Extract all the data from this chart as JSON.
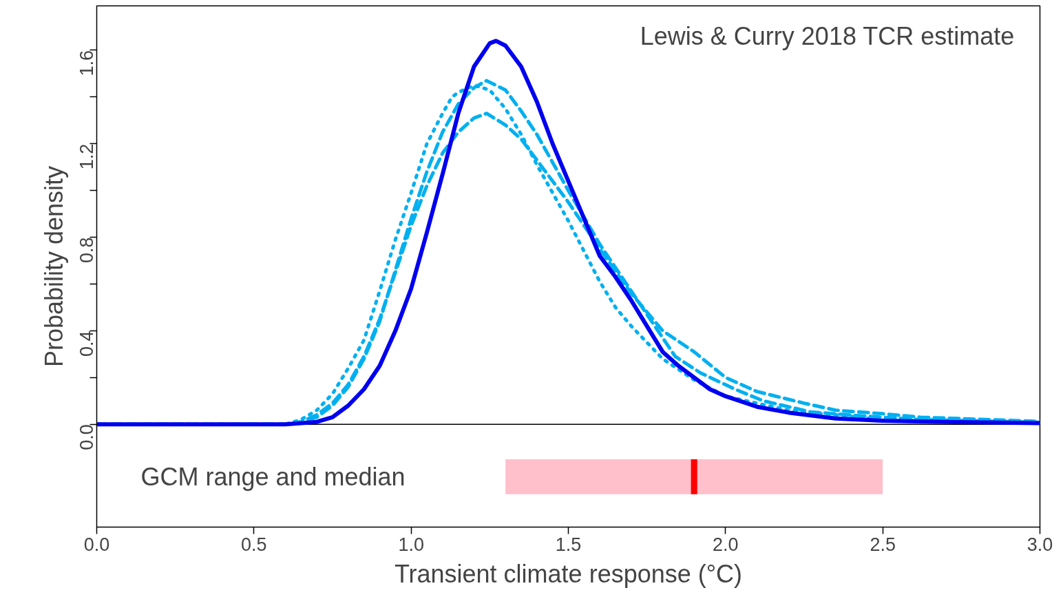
{
  "chart_data": {
    "type": "line",
    "xlabel": "Transient climate response (°C)",
    "ylabel": "Probability density",
    "xlim": [
      0,
      3
    ],
    "ylim": [
      -0.44,
      1.79
    ],
    "xticks": [
      {
        "value": 0,
        "label": "0.0"
      },
      0.5,
      {
        "value": 1,
        "label": "1.0"
      },
      1.5,
      {
        "value": 2,
        "label": "2.0"
      },
      2.5,
      {
        "value": 3,
        "label": "3.0"
      }
    ],
    "yticks": [
      {
        "value": 0,
        "label": "0.0"
      },
      {
        "value": 0.2,
        "label": null
      },
      0.4,
      {
        "value": 0.6,
        "label": null
      },
      0.8,
      {
        "value": 1.0,
        "label": null
      },
      1.2,
      {
        "value": 1.4,
        "label": null
      },
      1.6
    ],
    "grid": false,
    "series": [
      {
        "color": "#00b0f0",
        "line_style": "dotted",
        "x": [
          0,
          0.6,
          0.65,
          0.7,
          0.75,
          0.8,
          0.85,
          0.9,
          0.95,
          1.0,
          1.05,
          1.1,
          1.13,
          1.15,
          1.2,
          1.25,
          1.3,
          1.35,
          1.4,
          1.45,
          1.5,
          1.55,
          1.6,
          1.65,
          1.7,
          1.75,
          1.8,
          1.9,
          2.0,
          2.2,
          2.5,
          3.0
        ],
        "values": [
          0,
          0.0,
          0.02,
          0.06,
          0.13,
          0.24,
          0.36,
          0.57,
          0.79,
          0.99,
          1.2,
          1.33,
          1.4,
          1.42,
          1.45,
          1.43,
          1.35,
          1.24,
          1.11,
          0.99,
          0.87,
          0.74,
          0.61,
          0.5,
          0.42,
          0.35,
          0.28,
          0.19,
          0.12,
          0.06,
          0.02,
          0.005
        ]
      },
      {
        "color": "#00b0f0",
        "line_style": "dashed",
        "x": [
          0,
          0.6,
          0.65,
          0.7,
          0.75,
          0.8,
          0.85,
          0.9,
          0.95,
          1.0,
          1.05,
          1.1,
          1.15,
          1.2,
          1.24,
          1.3,
          1.35,
          1.4,
          1.45,
          1.5,
          1.6,
          1.7,
          1.8,
          1.84,
          1.92,
          2.03,
          2.12,
          2.27,
          2.44,
          2.62,
          3.0
        ],
        "values": [
          0,
          0.0,
          0.01,
          0.03,
          0.08,
          0.16,
          0.28,
          0.44,
          0.66,
          0.88,
          1.08,
          1.25,
          1.37,
          1.44,
          1.47,
          1.43,
          1.34,
          1.24,
          1.12,
          1.0,
          0.77,
          0.57,
          0.37,
          0.29,
          0.22,
          0.15,
          0.1,
          0.053,
          0.035,
          0.02,
          0.008
        ]
      },
      {
        "color": "#00b0f0",
        "line_style": "dashed",
        "x": [
          0,
          0.6,
          0.65,
          0.7,
          0.75,
          0.8,
          0.85,
          0.9,
          0.95,
          1.0,
          1.05,
          1.1,
          1.15,
          1.2,
          1.24,
          1.3,
          1.35,
          1.4,
          1.5,
          1.6,
          1.7,
          1.8,
          1.9,
          2.0,
          2.1,
          2.25,
          2.35,
          2.5,
          2.62,
          2.88,
          3.0
        ],
        "values": [
          0,
          0.0,
          0.01,
          0.04,
          0.09,
          0.17,
          0.29,
          0.45,
          0.65,
          0.85,
          1.02,
          1.16,
          1.25,
          1.31,
          1.33,
          1.28,
          1.22,
          1.13,
          0.95,
          0.75,
          0.56,
          0.4,
          0.31,
          0.2,
          0.14,
          0.09,
          0.06,
          0.045,
          0.03,
          0.018,
          0.012
        ]
      },
      {
        "color": "#0000ee",
        "line_style": "solid",
        "x": [
          0,
          0.5,
          0.6,
          0.7,
          0.75,
          0.8,
          0.85,
          0.9,
          0.95,
          1.0,
          1.05,
          1.1,
          1.15,
          1.2,
          1.25,
          1.27,
          1.3,
          1.35,
          1.4,
          1.45,
          1.5,
          1.55,
          1.6,
          1.65,
          1.7,
          1.75,
          1.8,
          1.85,
          1.9,
          1.95,
          2.0,
          2.1,
          2.2,
          2.35,
          2.5,
          2.7,
          3.0
        ],
        "values": [
          0,
          0,
          0.0,
          0.01,
          0.03,
          0.08,
          0.15,
          0.25,
          0.4,
          0.58,
          0.82,
          1.07,
          1.33,
          1.53,
          1.63,
          1.64,
          1.62,
          1.53,
          1.38,
          1.2,
          1.04,
          0.88,
          0.72,
          0.63,
          0.53,
          0.42,
          0.31,
          0.25,
          0.2,
          0.15,
          0.12,
          0.075,
          0.05,
          0.025,
          0.015,
          0.01,
          0.005
        ]
      }
    ],
    "ref_lines": [
      {
        "axis": "y",
        "value": 0,
        "color": "#000000"
      }
    ],
    "bands": [
      {
        "axis": "x",
        "from": 1.3,
        "to": 2.5,
        "color": "#ffc0cb"
      },
      {
        "axis": "x",
        "from": 1.89,
        "to": 1.91,
        "color": "#ff0000"
      }
    ],
    "annotations": [
      "Lewis & Curry 2018 TCR estimate",
      "GCM range and median"
    ]
  }
}
